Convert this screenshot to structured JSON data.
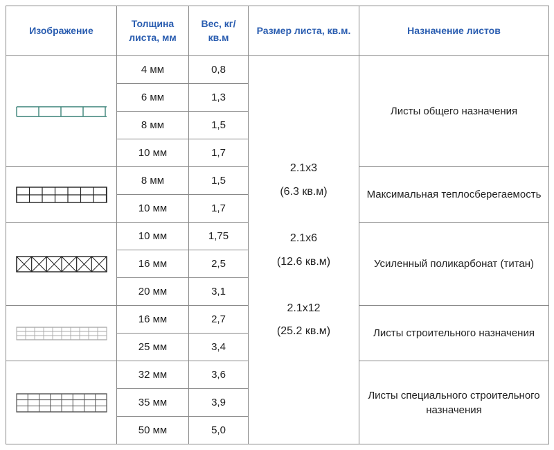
{
  "headers": {
    "image": "Изображение",
    "thickness": "Толщина листа, мм",
    "weight": "Вес, кг/кв.м",
    "size": "Размер листа, кв.м.",
    "purpose": "Назначение листов"
  },
  "sizes_text": "2.1x3\n(6.3 кв.м)\n\n2.1x6\n(12.6 кв.м)\n\n2.1x12\n(25.2 кв.м)",
  "groups": [
    {
      "svg": "ladder_teal",
      "purpose": "Листы общего назначения",
      "rows": [
        {
          "thickness": "4 мм",
          "weight": "0,8"
        },
        {
          "thickness": "6 мм",
          "weight": "1,3"
        },
        {
          "thickness": "8 мм",
          "weight": "1,5"
        },
        {
          "thickness": "10 мм",
          "weight": "1,7"
        }
      ]
    },
    {
      "svg": "grid2",
      "purpose": "Максимальная теплосберегаемость",
      "rows": [
        {
          "thickness": "8 мм",
          "weight": "1,5"
        },
        {
          "thickness": "10 мм",
          "weight": "1,7"
        }
      ]
    },
    {
      "svg": "cross_grid",
      "purpose": "Усиленный поликарбонат (титан)",
      "rows": [
        {
          "thickness": "10 мм",
          "weight": "1,75"
        },
        {
          "thickness": "16 мм",
          "weight": "2,5"
        },
        {
          "thickness": "20 мм",
          "weight": "3,1"
        }
      ]
    },
    {
      "svg": "thin_grid",
      "purpose": "Листы строительного назначения",
      "rows": [
        {
          "thickness": "16 мм",
          "weight": "2,7"
        },
        {
          "thickness": "25 мм",
          "weight": "3,4"
        }
      ]
    },
    {
      "svg": "dense_grid",
      "purpose": "Листы специального строительного назначения",
      "rows": [
        {
          "thickness": "32 мм",
          "weight": "3,6"
        },
        {
          "thickness": "35 мм",
          "weight": "3,9"
        },
        {
          "thickness": "50 мм",
          "weight": "5,0"
        }
      ]
    }
  ],
  "colors": {
    "header_text": "#2a5db0",
    "border": "#888888",
    "text": "#222222",
    "teal": "#3a8278"
  }
}
